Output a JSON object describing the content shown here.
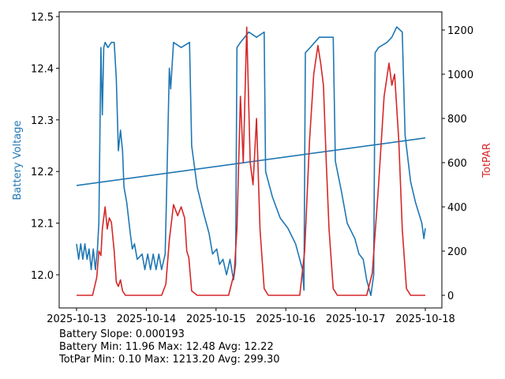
{
  "chart_data": {
    "type": "line",
    "x_unit": "days since 2025-10-13",
    "xlim": [
      0,
      5
    ],
    "x_ticks": [
      0,
      1,
      2,
      3,
      4,
      5
    ],
    "x_tick_labels": [
      "2025-10-13",
      "2025-10-14",
      "2025-10-15",
      "2025-10-16",
      "2025-10-17",
      "2025-10-18"
    ],
    "ylabel_left": "Battery Voltage",
    "ylabel_right": "TotPAR",
    "ylim_left": [
      11.935,
      12.505
    ],
    "ylim_right": [
      -60,
      1275
    ],
    "y_left_ticks": [
      12.0,
      12.1,
      12.2,
      12.3,
      12.4,
      12.5
    ],
    "y_left_tick_labels": [
      "12.0",
      "12.1",
      "12.2",
      "12.3",
      "12.4",
      "12.5"
    ],
    "y_right_ticks": [
      0,
      200,
      400,
      600,
      800,
      1000,
      1200
    ],
    "y_right_tick_labels": [
      "0",
      "200",
      "400",
      "600",
      "800",
      "1000",
      "1200"
    ],
    "grid": false,
    "colors": {
      "battery": "#1f77b4",
      "par": "#d62728"
    },
    "series": [
      {
        "name": "Battery Voltage",
        "axis": "left",
        "color": "#1f77b4",
        "points": [
          [
            0,
            12.06
          ],
          [
            0.03,
            12.03
          ],
          [
            0.06,
            12.06
          ],
          [
            0.09,
            12.03
          ],
          [
            0.12,
            12.06
          ],
          [
            0.15,
            12.03
          ],
          [
            0.18,
            12.05
          ],
          [
            0.21,
            12.01
          ],
          [
            0.24,
            12.05
          ],
          [
            0.27,
            12.01
          ],
          [
            0.3,
            12.05
          ],
          [
            0.32,
            12.1
          ],
          [
            0.35,
            12.44
          ],
          [
            0.37,
            12.31
          ],
          [
            0.39,
            12.44
          ],
          [
            0.41,
            12.45
          ],
          [
            0.45,
            12.44
          ],
          [
            0.5,
            12.45
          ],
          [
            0.54,
            12.45
          ],
          [
            0.57,
            12.38
          ],
          [
            0.6,
            12.24
          ],
          [
            0.63,
            12.28
          ],
          [
            0.66,
            12.24
          ],
          [
            0.68,
            12.17
          ],
          [
            0.72,
            12.14
          ],
          [
            0.77,
            12.08
          ],
          [
            0.8,
            12.05
          ],
          [
            0.83,
            12.06
          ],
          [
            0.87,
            12.03
          ],
          [
            0.94,
            12.04
          ],
          [
            0.98,
            12.01
          ],
          [
            1.02,
            12.04
          ],
          [
            1.06,
            12.01
          ],
          [
            1.1,
            12.04
          ],
          [
            1.14,
            12.01
          ],
          [
            1.18,
            12.04
          ],
          [
            1.22,
            12.01
          ],
          [
            1.27,
            12.04
          ],
          [
            1.29,
            12.15
          ],
          [
            1.33,
            12.4
          ],
          [
            1.35,
            12.36
          ],
          [
            1.39,
            12.45
          ],
          [
            1.5,
            12.44
          ],
          [
            1.62,
            12.45
          ],
          [
            1.65,
            12.25
          ],
          [
            1.73,
            12.17
          ],
          [
            1.82,
            12.12
          ],
          [
            1.9,
            12.08
          ],
          [
            1.95,
            12.04
          ],
          [
            2.01,
            12.05
          ],
          [
            2.05,
            12.02
          ],
          [
            2.1,
            12.03
          ],
          [
            2.15,
            12.0
          ],
          [
            2.2,
            12.03
          ],
          [
            2.25,
            11.99
          ],
          [
            2.28,
            12.02
          ],
          [
            2.3,
            12.44
          ],
          [
            2.35,
            12.45
          ],
          [
            2.41,
            12.46
          ],
          [
            2.47,
            12.47
          ],
          [
            2.58,
            12.46
          ],
          [
            2.69,
            12.47
          ],
          [
            2.71,
            12.2
          ],
          [
            2.81,
            12.15
          ],
          [
            2.92,
            12.11
          ],
          [
            3.03,
            12.09
          ],
          [
            3.14,
            12.06
          ],
          [
            3.2,
            12.03
          ],
          [
            3.24,
            12.01
          ],
          [
            3.26,
            11.97
          ],
          [
            3.28,
            12.43
          ],
          [
            3.35,
            12.44
          ],
          [
            3.48,
            12.46
          ],
          [
            3.68,
            12.46
          ],
          [
            3.71,
            12.22
          ],
          [
            3.8,
            12.16
          ],
          [
            3.88,
            12.1
          ],
          [
            3.99,
            12.07
          ],
          [
            4.05,
            12.04
          ],
          [
            4.11,
            12.03
          ],
          [
            4.16,
            11.99
          ],
          [
            4.22,
            11.96
          ],
          [
            4.26,
            12.0
          ],
          [
            4.28,
            12.43
          ],
          [
            4.33,
            12.44
          ],
          [
            4.45,
            12.45
          ],
          [
            4.52,
            12.46
          ],
          [
            4.59,
            12.48
          ],
          [
            4.67,
            12.47
          ],
          [
            4.71,
            12.27
          ],
          [
            4.79,
            12.18
          ],
          [
            4.86,
            12.14
          ],
          [
            4.95,
            12.1
          ],
          [
            4.98,
            12.07
          ],
          [
            5.0,
            12.09
          ]
        ]
      },
      {
        "name": "Battery Trend",
        "axis": "left",
        "color": "#1f77b4",
        "points": [
          [
            0,
            12.173
          ],
          [
            5,
            12.265
          ]
        ]
      },
      {
        "name": "TotPAR",
        "axis": "right",
        "color": "#d62728",
        "points": [
          [
            0,
            0
          ],
          [
            0.23,
            0
          ],
          [
            0.29,
            80
          ],
          [
            0.32,
            200
          ],
          [
            0.35,
            180
          ],
          [
            0.37,
            300
          ],
          [
            0.41,
            400
          ],
          [
            0.44,
            300
          ],
          [
            0.47,
            350
          ],
          [
            0.5,
            330
          ],
          [
            0.54,
            200
          ],
          [
            0.57,
            60
          ],
          [
            0.6,
            40
          ],
          [
            0.63,
            70
          ],
          [
            0.66,
            20
          ],
          [
            0.7,
            0
          ],
          [
            1.22,
            0
          ],
          [
            1.28,
            50
          ],
          [
            1.33,
            250
          ],
          [
            1.39,
            410
          ],
          [
            1.45,
            360
          ],
          [
            1.5,
            400
          ],
          [
            1.55,
            350
          ],
          [
            1.58,
            200
          ],
          [
            1.61,
            170
          ],
          [
            1.65,
            20
          ],
          [
            1.73,
            0
          ],
          [
            2.18,
            0
          ],
          [
            2.26,
            100
          ],
          [
            2.3,
            300
          ],
          [
            2.35,
            900
          ],
          [
            2.39,
            600
          ],
          [
            2.44,
            1213
          ],
          [
            2.49,
            600
          ],
          [
            2.53,
            500
          ],
          [
            2.58,
            800
          ],
          [
            2.63,
            300
          ],
          [
            2.69,
            30
          ],
          [
            2.75,
            0
          ],
          [
            3.2,
            0
          ],
          [
            3.27,
            200
          ],
          [
            3.34,
            700
          ],
          [
            3.4,
            1000
          ],
          [
            3.46,
            1130
          ],
          [
            3.5,
            1050
          ],
          [
            3.54,
            950
          ],
          [
            3.58,
            600
          ],
          [
            3.62,
            300
          ],
          [
            3.68,
            30
          ],
          [
            3.74,
            0
          ],
          [
            4.16,
            0
          ],
          [
            4.24,
            100
          ],
          [
            4.33,
            500
          ],
          [
            4.41,
            900
          ],
          [
            4.48,
            1050
          ],
          [
            4.52,
            950
          ],
          [
            4.56,
            1000
          ],
          [
            4.62,
            700
          ],
          [
            4.67,
            300
          ],
          [
            4.73,
            30
          ],
          [
            4.79,
            0
          ],
          [
            5.0,
            0
          ]
        ]
      }
    ]
  },
  "stats": {
    "slope": "Battery Slope: 0.000193",
    "battery": "Battery Min: 11.96 Max: 12.48 Avg: 12.22",
    "par": "TotPar Min: 0.10 Max: 1213.20 Avg: 299.30"
  }
}
